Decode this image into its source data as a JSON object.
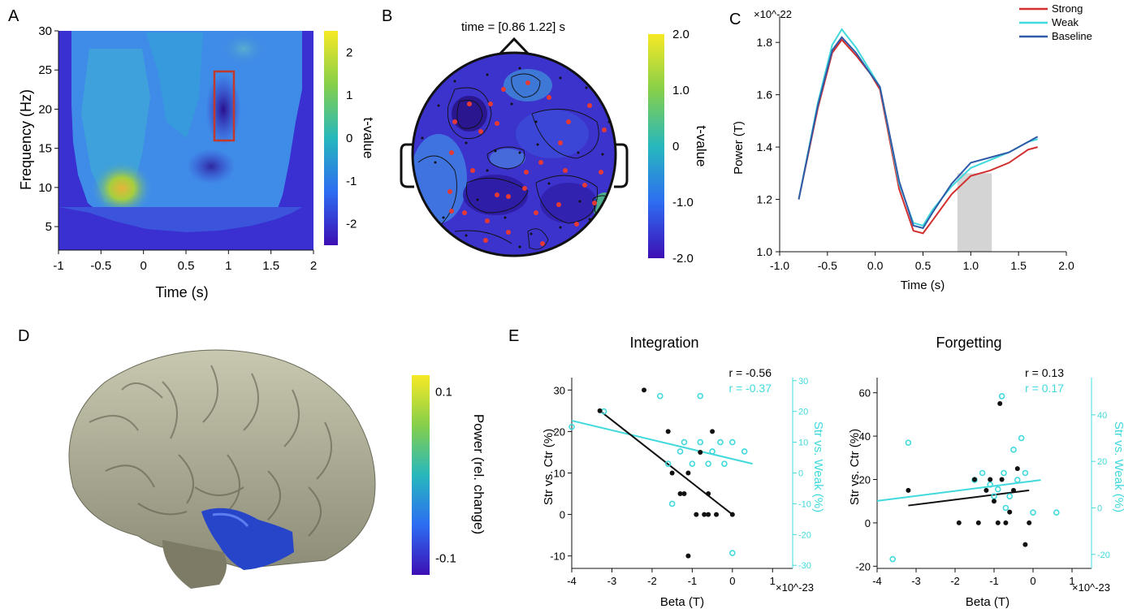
{
  "panels": {
    "a": {
      "letter": "A"
    },
    "b": {
      "letter": "B",
      "title": "time = [0.86 1.22] s"
    },
    "c": {
      "letter": "C"
    },
    "d": {
      "letter": "D"
    },
    "e": {
      "letter": "E"
    }
  },
  "chart_data": [
    {
      "id": "A",
      "type": "heatmap",
      "xlabel": "Time (s)",
      "ylabel": "Frequency (Hz)",
      "xlim": [
        -1,
        2
      ],
      "ylim": [
        2,
        30
      ],
      "xticks": [
        "-1",
        "-0.5",
        "0",
        "0.5",
        "1",
        "1.5",
        "2"
      ],
      "yticks": [
        "5",
        "10",
        "15",
        "20",
        "25",
        "30"
      ],
      "colorbar": {
        "label": "t-value",
        "ticks": [
          "2",
          "1",
          "0",
          "-1",
          "-2"
        ],
        "range": [
          -2.5,
          2.5
        ],
        "colormap": [
          "#3d0fb5",
          "#2d6df2",
          "#27b8bd",
          "#86cf4a",
          "#f7e925"
        ]
      },
      "highlight_box": {
        "x": [
          0.75,
          0.95
        ],
        "y": [
          16,
          24
        ],
        "color": "#c0392b"
      }
    },
    {
      "id": "B",
      "type": "heatmap",
      "title": "time = [0.86 1.22] s",
      "colorbar": {
        "label": "t-value",
        "ticks": [
          "2.0",
          "1.0",
          "0",
          "-1.0",
          "-2.0"
        ],
        "range": [
          -2,
          2
        ]
      },
      "marker_color": "#e53935"
    },
    {
      "id": "C",
      "type": "line",
      "xlabel": "Time (s)",
      "ylabel": "Power (T)",
      "scale_label": "×10^-22",
      "xlim": [
        -1,
        2
      ],
      "ylim": [
        1.0,
        1.9
      ],
      "xticks": [
        "-1.0",
        "-0.5",
        "0.0",
        "0.5",
        "1.0",
        "1.5",
        "2.0"
      ],
      "yticks": [
        "1.0",
        "1.2",
        "1.4",
        "1.6",
        "1.8"
      ],
      "shaded_interval": [
        0.86,
        1.22
      ],
      "x": [
        -0.8,
        -0.6,
        -0.45,
        -0.35,
        -0.2,
        -0.05,
        0.05,
        0.25,
        0.4,
        0.5,
        0.6,
        0.8,
        1.0,
        1.2,
        1.4,
        1.6,
        1.7
      ],
      "series": [
        {
          "name": "Strong",
          "color": "#d32f2f",
          "values": [
            1.2,
            1.55,
            1.76,
            1.81,
            1.75,
            1.68,
            1.62,
            1.24,
            1.08,
            1.07,
            1.12,
            1.22,
            1.29,
            1.31,
            1.34,
            1.39,
            1.4
          ]
        },
        {
          "name": "Weak",
          "color": "#40d9dc",
          "values": [
            1.2,
            1.57,
            1.79,
            1.85,
            1.78,
            1.69,
            1.63,
            1.26,
            1.11,
            1.1,
            1.16,
            1.25,
            1.32,
            1.35,
            1.38,
            1.42,
            1.43
          ]
        },
        {
          "name": "Baseline",
          "color": "#2e5aa8",
          "values": [
            1.2,
            1.56,
            1.77,
            1.82,
            1.76,
            1.68,
            1.63,
            1.27,
            1.1,
            1.09,
            1.15,
            1.26,
            1.34,
            1.36,
            1.38,
            1.42,
            1.44
          ]
        }
      ]
    },
    {
      "id": "D",
      "type": "heatmap",
      "colorbar": {
        "label": "Power (rel. change)",
        "ticks": [
          "0.1",
          "-0.1"
        ],
        "range": [
          -0.12,
          0.12
        ]
      }
    },
    {
      "id": "E1",
      "type": "scatter",
      "title": "Integration",
      "xlabel": "Beta (T)",
      "scale_label": "×10^-23",
      "ylabel_left": "Str vs. Ctr (%)",
      "ylabel_right": "Str vs. Weak (%)",
      "xlim": [
        -4,
        1.5
      ],
      "ylim_left": [
        -13,
        33
      ],
      "ylim_right": [
        -31,
        31
      ],
      "xticks": [
        "-4",
        "-3",
        "-2",
        "-1",
        "0",
        "1"
      ],
      "yticks_left": [
        "-10",
        "0",
        "10",
        "20",
        "30"
      ],
      "yticks_right": [
        "-30",
        "-20",
        "-10",
        "0",
        "10",
        "20",
        "30"
      ],
      "r_left": "r = -0.56",
      "r_right": "r = -0.37",
      "left_series": {
        "name": "Str vs. Ctr",
        "color": "#111111",
        "points": [
          [
            -3.3,
            25
          ],
          [
            -2.2,
            30
          ],
          [
            -1.6,
            20
          ],
          [
            -1.5,
            10
          ],
          [
            -1.3,
            5
          ],
          [
            -1.2,
            5
          ],
          [
            -1.1,
            10
          ],
          [
            -0.9,
            0
          ],
          [
            -0.8,
            15
          ],
          [
            -0.7,
            0
          ],
          [
            -0.6,
            5
          ],
          [
            -0.6,
            0
          ],
          [
            -0.5,
            20
          ],
          [
            -0.4,
            0
          ],
          [
            0.0,
            0
          ],
          [
            -1.1,
            -10
          ]
        ],
        "fit": [
          [
            -3.3,
            25
          ],
          [
            0.0,
            0
          ]
        ]
      },
      "right_series": {
        "name": "Str vs. Weak",
        "color": "#40d9dc",
        "points": [
          [
            -4.0,
            15
          ],
          [
            -3.2,
            20
          ],
          [
            -1.8,
            25
          ],
          [
            -1.6,
            3
          ],
          [
            -1.5,
            -10
          ],
          [
            -1.3,
            7
          ],
          [
            -1.2,
            10
          ],
          [
            -1.0,
            3
          ],
          [
            -0.8,
            10
          ],
          [
            -0.8,
            25
          ],
          [
            -0.6,
            3
          ],
          [
            -0.5,
            7
          ],
          [
            -0.3,
            10
          ],
          [
            -0.2,
            3
          ],
          [
            0.0,
            10
          ],
          [
            0.3,
            7
          ],
          [
            0.0,
            -26
          ]
        ],
        "fit": [
          [
            -4.0,
            17
          ],
          [
            0.5,
            3
          ]
        ]
      }
    },
    {
      "id": "E2",
      "type": "scatter",
      "title": "Forgetting",
      "xlabel": "Beta (T)",
      "scale_label": "×10^-23",
      "ylabel_left": "Str vs. Ctr (%)",
      "ylabel_right": "Str vs. Weak (%)",
      "xlim": [
        -4,
        1.5
      ],
      "ylim_left": [
        -21,
        67
      ],
      "ylim_right": [
        -26,
        56
      ],
      "xticks": [
        "-4",
        "-3",
        "-2",
        "-1",
        "0",
        "1"
      ],
      "yticks_left": [
        "-20",
        "0",
        "20",
        "40",
        "60"
      ],
      "yticks_right": [
        "-20",
        "0",
        "20",
        "40"
      ],
      "r_left": "r = 0.13",
      "r_right": "r = 0.17",
      "left_series": {
        "name": "Str vs. Ctr",
        "color": "#111111",
        "points": [
          [
            -3.2,
            15
          ],
          [
            -1.9,
            0
          ],
          [
            -1.5,
            20
          ],
          [
            -1.4,
            0
          ],
          [
            -1.2,
            15
          ],
          [
            -1.1,
            20
          ],
          [
            -1.0,
            10
          ],
          [
            -0.9,
            0
          ],
          [
            -0.85,
            55
          ],
          [
            -0.8,
            20
          ],
          [
            -0.7,
            0
          ],
          [
            -0.6,
            5
          ],
          [
            -0.5,
            15
          ],
          [
            -0.4,
            25
          ],
          [
            -0.2,
            -10
          ],
          [
            -0.1,
            0
          ]
        ],
        "fit": [
          [
            -3.2,
            8
          ],
          [
            -0.1,
            15
          ]
        ]
      },
      "right_series": {
        "name": "Str vs. Weak",
        "color": "#40d9dc",
        "points": [
          [
            -3.6,
            -22
          ],
          [
            -3.2,
            28
          ],
          [
            -1.5,
            12
          ],
          [
            -1.3,
            15
          ],
          [
            -1.1,
            10
          ],
          [
            -1.0,
            5
          ],
          [
            -0.9,
            8
          ],
          [
            -0.8,
            48
          ],
          [
            -0.75,
            15
          ],
          [
            -0.7,
            0
          ],
          [
            -0.6,
            5
          ],
          [
            -0.5,
            25
          ],
          [
            -0.4,
            12
          ],
          [
            -0.3,
            30
          ],
          [
            -0.2,
            15
          ],
          [
            0.0,
            -2
          ],
          [
            0.6,
            -2
          ]
        ],
        "fit": [
          [
            -4.0,
            3
          ],
          [
            0.2,
            12
          ]
        ]
      }
    }
  ]
}
